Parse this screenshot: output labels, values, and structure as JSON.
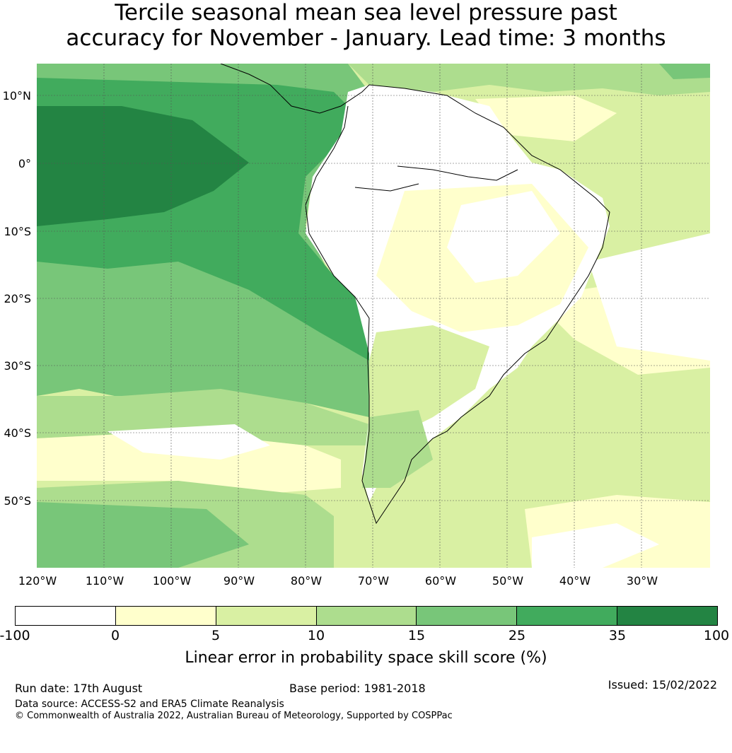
{
  "title_line1": "Tercile seasonal mean sea level pressure past",
  "title_line2": "accuracy for November - January. Lead time: 3 months",
  "lat_labels": [
    "10°N",
    "0°",
    "10°S",
    "20°S",
    "30°S",
    "40°S",
    "50°S"
  ],
  "lon_labels": [
    "120°W",
    "110°W",
    "100°W",
    "90°W",
    "80°W",
    "70°W",
    "60°W",
    "50°W",
    "40°W",
    "30°W"
  ],
  "colorbar": {
    "ticks": [
      "-100",
      "0",
      "5",
      "10",
      "15",
      "25",
      "35",
      "100"
    ],
    "colors": [
      "#ffffff",
      "#ffffcc",
      "#d9f0a3",
      "#addd8e",
      "#78c679",
      "#41ab5d",
      "#238443"
    ],
    "label": "Linear error in probability space skill score (%)"
  },
  "footer": {
    "run_date": "Run date: 17th August",
    "base_period": "Base period: 1981-2018",
    "issued": "Issued: 15/02/2022",
    "data_source": "Data source: ACCESS-S2 and ERA5 Climate Reanalysis",
    "copyright": "© Commonwealth of Australia 2022, Australian Bureau of Meteorology, Supported by COSPPac"
  }
}
